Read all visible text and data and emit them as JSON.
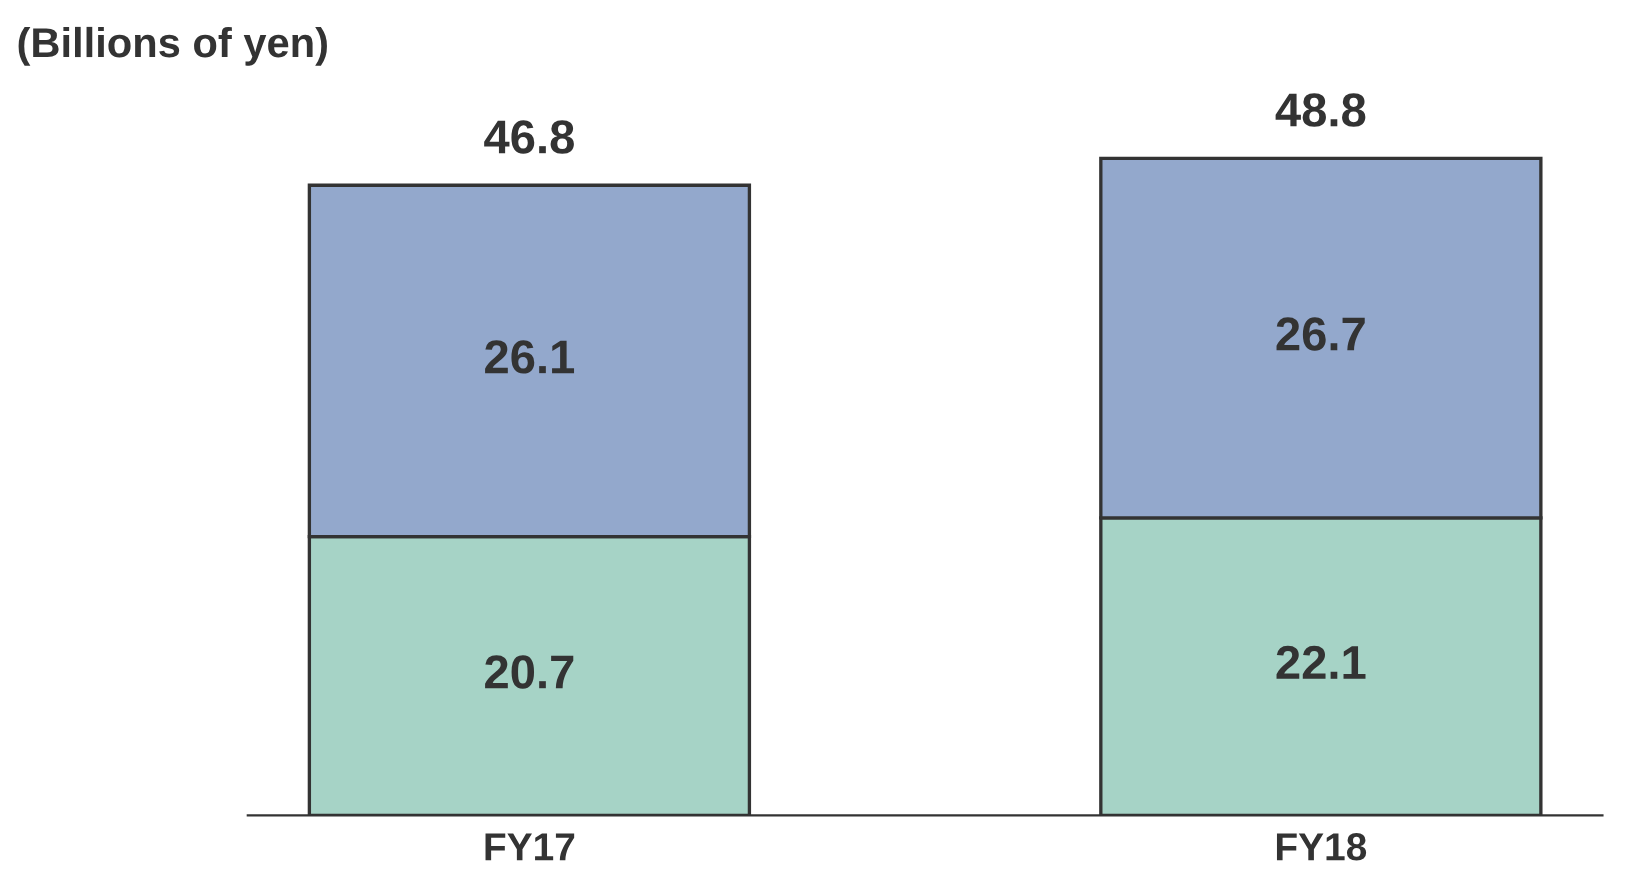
{
  "chart_data": {
    "type": "bar",
    "title": "(Billions of yen)",
    "categories": [
      "FY17",
      "FY18"
    ],
    "stacked": true,
    "series": [
      {
        "color": "#a6d3c6",
        "values": [
          20.7,
          22.1
        ]
      },
      {
        "color": "#93a8cc",
        "values": [
          26.1,
          26.7
        ]
      }
    ],
    "totals": [
      "46.8",
      "48.8"
    ],
    "data_labels": true,
    "grid": false,
    "legend": false
  }
}
